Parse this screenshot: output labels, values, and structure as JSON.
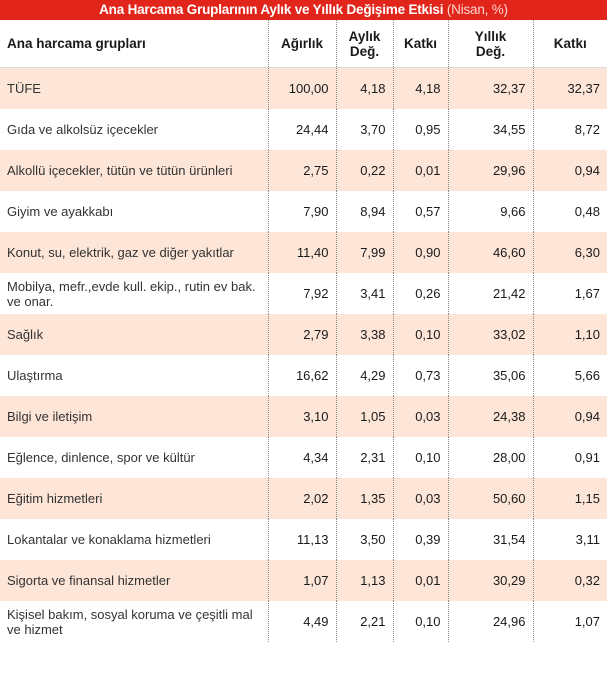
{
  "title": "Ana Harcama Gruplarının Aylık ve Yıllık Değişime Etkisi",
  "subtitle": "(Nisan, %)",
  "headers": {
    "group": "Ana harcama grupları",
    "weight": "Ağırlık",
    "monthly_change_1": "Aylık",
    "monthly_change_2": "Değ.",
    "monthly_contrib": "Katkı",
    "annual_change_1": "Yıllık",
    "annual_change_2": "Değ.",
    "annual_contrib": "Katkı"
  },
  "rows": [
    [
      "TÜFE",
      "100,00",
      "4,18",
      "4,18",
      "32,37",
      "32,37"
    ],
    [
      "Gıda ve alkolsüz içecekler",
      "24,44",
      "3,70",
      "0,95",
      "34,55",
      "8,72"
    ],
    [
      "Alkollü içecekler, tütün ve tütün ürünleri",
      "2,75",
      "0,22",
      "0,01",
      "29,96",
      "0,94"
    ],
    [
      "Giyim ve ayakkabı",
      "7,90",
      "8,94",
      "0,57",
      "9,66",
      "0,48"
    ],
    [
      "Konut, su, elektrik, gaz ve diğer yakıtlar",
      "11,40",
      "7,99",
      "0,90",
      "46,60",
      "6,30"
    ],
    [
      "Mobilya, mefr.,evde kull. ekip., rutin ev bak. ve onar.",
      "7,92",
      "3,41",
      "0,26",
      "21,42",
      "1,67"
    ],
    [
      "Sağlık",
      "2,79",
      "3,38",
      "0,10",
      "33,02",
      "1,10"
    ],
    [
      "Ulaştırma",
      "16,62",
      "4,29",
      "0,73",
      "35,06",
      "5,66"
    ],
    [
      "Bilgi ve iletişim",
      "3,10",
      "1,05",
      "0,03",
      "24,38",
      "0,94"
    ],
    [
      "Eğlence, dinlence, spor ve kültür",
      "4,34",
      "2,31",
      "0,10",
      "28,00",
      "0,91"
    ],
    [
      "Eğitim hizmetleri",
      "2,02",
      "1,35",
      "0,03",
      "50,60",
      "1,15"
    ],
    [
      "Lokantalar ve konaklama hizmetleri",
      "11,13",
      "3,50",
      "0,39",
      "31,54",
      "3,11"
    ],
    [
      "Sigorta ve finansal hizmetler",
      "1,07",
      "1,13",
      "0,01",
      "30,29",
      "0,32"
    ],
    [
      "Kişisel bakım, sosyal koruma ve çeşitli mal ve hizmet",
      "4,49",
      "2,21",
      "0,10",
      "24,96",
      "1,07"
    ]
  ],
  "colors": {
    "banner": "#e1251b",
    "row_shade": "#fde5d7"
  }
}
